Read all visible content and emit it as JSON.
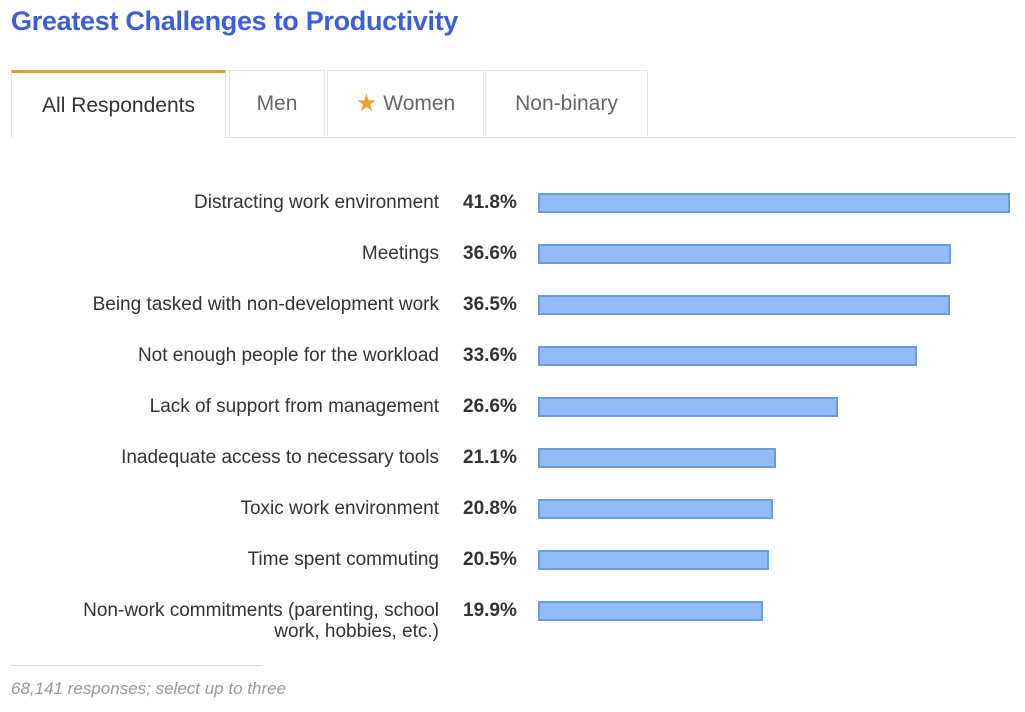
{
  "title": "Greatest Challenges to Productivity",
  "tabs": [
    {
      "label": "All Respondents",
      "active": true
    },
    {
      "label": "Men"
    },
    {
      "label": "Women",
      "icon": "star-icon"
    },
    {
      "label": "Non-binary"
    }
  ],
  "chart_data": {
    "type": "bar",
    "orientation": "horizontal",
    "categories": [
      "Distracting work environment",
      "Meetings",
      "Being tasked with non-development work",
      "Not enough people for the workload",
      "Lack of support from management",
      "Inadequate access to necessary tools",
      "Toxic work environment",
      "Time spent commuting",
      "Non-work commitments (parenting, school work, hobbies, etc.)"
    ],
    "labels_display": [
      [
        "Distracting work environment"
      ],
      [
        "Meetings"
      ],
      [
        "Being tasked with non-development work"
      ],
      [
        "Not enough people for the workload"
      ],
      [
        "Lack of support from management"
      ],
      [
        "Inadequate access to necessary tools"
      ],
      [
        "Toxic work environment"
      ],
      [
        "Time spent commuting"
      ],
      [
        "Non-work commitments (parenting, school",
        "work, hobbies, etc.)"
      ]
    ],
    "values": [
      41.8,
      36.6,
      36.5,
      33.6,
      26.6,
      21.1,
      20.8,
      20.5,
      19.9
    ],
    "value_labels": [
      "41.8%",
      "36.6%",
      "36.5%",
      "33.6%",
      "26.6%",
      "21.1%",
      "20.8%",
      "20.5%",
      "19.9%"
    ],
    "unit": "%",
    "bar_color": "#93bbf5",
    "bar_border": "#6a9ce6"
  },
  "footer": "68,141 responses; select up to three"
}
